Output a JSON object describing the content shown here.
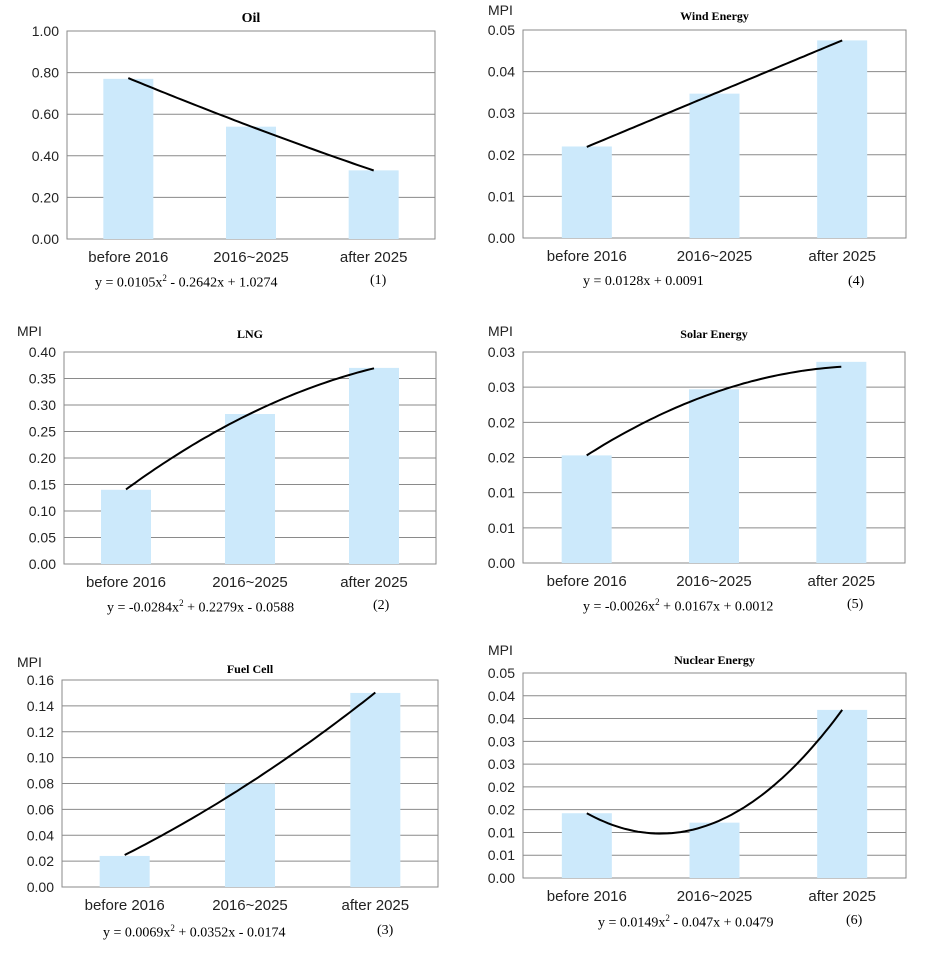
{
  "colors": {
    "bar": "#cce9fb",
    "grid": "#8a8a8a",
    "curve": "#000000"
  },
  "chart_data": [
    {
      "type": "bar",
      "title": "Oil",
      "ylabel": "",
      "categories": [
        "before 2016",
        "2016~2025",
        "after 2025"
      ],
      "values": [
        0.77,
        0.54,
        0.33
      ],
      "ylim": [
        0,
        1.0
      ],
      "yticks": [
        "0.00",
        "0.20",
        "0.40",
        "0.60",
        "0.80",
        "1.00"
      ],
      "trendline": {
        "coef": [
          0.0105,
          -0.2642,
          1.0274
        ]
      },
      "equation": {
        "parts": [
          "y = 0.0105x",
          "2",
          " - 0.2642x + 1.0274"
        ],
        "number": "(1)"
      }
    },
    {
      "type": "bar",
      "title": "LNG",
      "ylabel": "MPI",
      "categories": [
        "before 2016",
        "2016~2025",
        "after 2025"
      ],
      "values": [
        0.14,
        0.283,
        0.37
      ],
      "ylim": [
        0,
        0.4
      ],
      "yticks": [
        "0.00",
        "0.05",
        "0.10",
        "0.15",
        "0.20",
        "0.25",
        "0.30",
        "0.35",
        "0.40"
      ],
      "trendline": {
        "coef": [
          -0.0284,
          0.2279,
          -0.0588
        ]
      },
      "equation": {
        "parts": [
          "y = -0.0284x",
          "2",
          " + 0.2279x - 0.0588"
        ],
        "number": "(2)"
      }
    },
    {
      "type": "bar",
      "title": "Fuel Cell",
      "ylabel": "MPI",
      "categories": [
        "before 2016",
        "2016~2025",
        "after 2025"
      ],
      "values": [
        0.024,
        0.08,
        0.15
      ],
      "ylim": [
        0,
        0.16
      ],
      "yticks": [
        "0.00",
        "0.02",
        "0.04",
        "0.06",
        "0.08",
        "0.10",
        "0.12",
        "0.14",
        "0.16"
      ],
      "trendline": {
        "coef": [
          0.0069,
          0.0352,
          -0.0174
        ]
      },
      "equation": {
        "parts": [
          "y = 0.0069x",
          "2",
          " + 0.0352x - 0.0174"
        ],
        "number": "(3)"
      }
    },
    {
      "type": "bar",
      "title": "Wind Energy",
      "ylabel": "MPI",
      "categories": [
        "before 2016",
        "2016~2025",
        "after 2025"
      ],
      "values": [
        0.022,
        0.0347,
        0.0475
      ],
      "ylim": [
        0,
        0.05
      ],
      "yticks": [
        "0.00",
        "0.01",
        "0.02",
        "0.03",
        "0.04",
        "0.05"
      ],
      "trendline": {
        "coef": [
          0,
          0.0128,
          0.0091
        ]
      },
      "equation": {
        "parts": [
          "y = 0.0128x + 0.0091"
        ],
        "number": "(4)"
      }
    },
    {
      "type": "bar",
      "title": "Solar Energy",
      "ylabel": "MPI",
      "categories": [
        "before 2016",
        "2016~2025",
        "after 2025"
      ],
      "values": [
        0.0153,
        0.0247,
        0.0286
      ],
      "ylim": [
        0,
        0.03
      ],
      "yticks": [
        "0.00",
        "0.01",
        "0.01",
        "0.02",
        "0.02",
        "0.03",
        "0.03"
      ],
      "trendline": {
        "coef": [
          -0.0026,
          0.0167,
          0.0012
        ]
      },
      "equation": {
        "parts": [
          "y = -0.0026x",
          "2",
          " + 0.0167x + 0.0012"
        ],
        "number": "(5)"
      }
    },
    {
      "type": "bar",
      "title": "Nuclear Energy",
      "ylabel": "MPI",
      "categories": [
        "before 2016",
        "2016~2025",
        "after 2025"
      ],
      "values": [
        0.0158,
        0.0135,
        0.041
      ],
      "ylim": [
        0,
        0.05
      ],
      "yticks": [
        "0.00",
        "0.01",
        "0.01",
        "0.02",
        "0.02",
        "0.03",
        "0.03",
        "0.04",
        "0.04",
        "0.05"
      ],
      "trendline": {
        "coef": [
          0.0149,
          -0.047,
          0.0479
        ]
      },
      "equation": {
        "parts": [
          "y = 0.0149x",
          "2",
          " - 0.047x + 0.0479"
        ],
        "number": "(6)"
      }
    }
  ]
}
